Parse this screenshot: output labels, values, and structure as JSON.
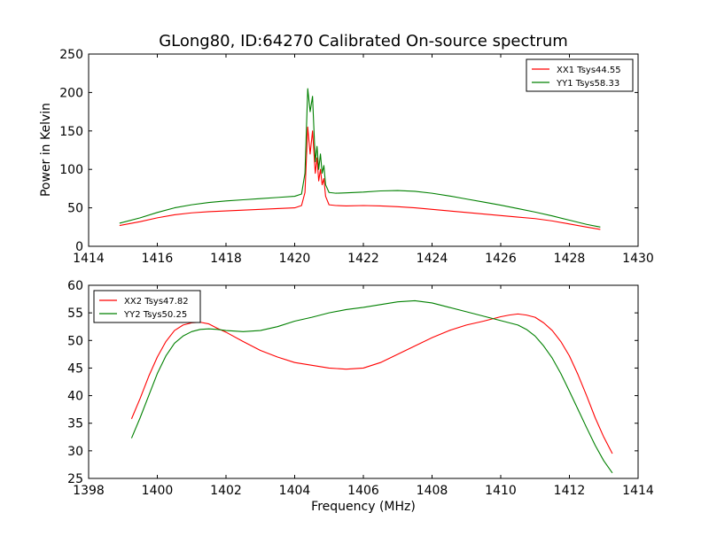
{
  "figure": {
    "title": "GLong80, ID:64270 Calibrated On-source spectrum",
    "ylabel_top": "Power in Kelvin",
    "xlabel_bottom": "Frequency (MHz)"
  },
  "colors": {
    "xx": "#ff0000",
    "yy": "#008000"
  },
  "chart_data": [
    {
      "type": "line",
      "title": "GLong80, ID:64270 Calibrated On-source spectrum",
      "xlabel": "",
      "ylabel": "Power in Kelvin",
      "xlim": [
        1414,
        1430
      ],
      "ylim": [
        0,
        250
      ],
      "xticks": [
        1414,
        1416,
        1418,
        1420,
        1422,
        1424,
        1426,
        1428,
        1430
      ],
      "yticks": [
        0,
        50,
        100,
        150,
        200,
        250
      ],
      "grid": false,
      "legend_position": "top-right",
      "series": [
        {
          "name": "XX1 Tsys44.55",
          "color": "#ff0000",
          "x": [
            1414.9,
            1415.5,
            1416.0,
            1416.5,
            1417.0,
            1417.5,
            1418.0,
            1418.5,
            1419.0,
            1419.5,
            1420.0,
            1420.2,
            1420.3,
            1420.38,
            1420.45,
            1420.52,
            1420.6,
            1420.65,
            1420.7,
            1420.75,
            1420.8,
            1420.85,
            1420.9,
            1421.0,
            1421.2,
            1421.5,
            1422.0,
            1422.5,
            1423.0,
            1423.5,
            1424.0,
            1424.5,
            1425.0,
            1425.5,
            1426.0,
            1426.5,
            1427.0,
            1427.5,
            1428.0,
            1428.5,
            1428.9
          ],
          "y": [
            27,
            32,
            37,
            41,
            43.5,
            45,
            46,
            47,
            48,
            49,
            50,
            53,
            70,
            155,
            120,
            150,
            95,
            115,
            85,
            100,
            80,
            88,
            65,
            54,
            53,
            52.5,
            53,
            52.5,
            51.5,
            50,
            48,
            46,
            44,
            42,
            40,
            38,
            36,
            33,
            29,
            25,
            22
          ]
        },
        {
          "name": "YY1 Tsys58.33",
          "color": "#008000",
          "x": [
            1414.9,
            1415.5,
            1416.0,
            1416.5,
            1417.0,
            1417.5,
            1418.0,
            1418.5,
            1419.0,
            1419.5,
            1420.0,
            1420.2,
            1420.3,
            1420.38,
            1420.45,
            1420.52,
            1420.6,
            1420.65,
            1420.7,
            1420.75,
            1420.8,
            1420.85,
            1420.9,
            1421.0,
            1421.2,
            1421.5,
            1422.0,
            1422.5,
            1423.0,
            1423.5,
            1424.0,
            1424.5,
            1425.0,
            1425.5,
            1426.0,
            1426.5,
            1427.0,
            1427.5,
            1428.0,
            1428.5,
            1428.9
          ],
          "y": [
            30,
            37,
            44,
            50,
            54,
            57,
            59,
            60.5,
            62,
            63.5,
            65,
            68,
            95,
            205,
            175,
            195,
            110,
            130,
            100,
            120,
            95,
            105,
            80,
            70,
            69,
            69.5,
            70.5,
            72,
            72.5,
            71.5,
            69,
            65.5,
            61.5,
            57.5,
            53.5,
            49,
            44.5,
            39.5,
            34,
            28.5,
            25
          ]
        }
      ]
    },
    {
      "type": "line",
      "title": "",
      "xlabel": "Frequency (MHz)",
      "ylabel": "",
      "xlim": [
        1398,
        1414
      ],
      "ylim": [
        25,
        60
      ],
      "xticks": [
        1398,
        1400,
        1402,
        1404,
        1406,
        1408,
        1410,
        1412,
        1414
      ],
      "yticks": [
        25,
        30,
        35,
        40,
        45,
        50,
        55,
        60
      ],
      "grid": false,
      "legend_position": "top-left",
      "series": [
        {
          "name": "XX2 Tsys47.82",
          "color": "#ff0000",
          "x": [
            1399.25,
            1399.5,
            1399.75,
            1400.0,
            1400.25,
            1400.5,
            1400.75,
            1401.0,
            1401.25,
            1401.5,
            1401.75,
            1402.0,
            1402.5,
            1403.0,
            1403.5,
            1404.0,
            1404.5,
            1405.0,
            1405.5,
            1406.0,
            1406.5,
            1407.0,
            1407.5,
            1408.0,
            1408.5,
            1409.0,
            1409.5,
            1410.0,
            1410.25,
            1410.5,
            1410.75,
            1411.0,
            1411.25,
            1411.5,
            1411.75,
            1412.0,
            1412.25,
            1412.5,
            1412.75,
            1413.0,
            1413.25
          ],
          "y": [
            35.8,
            39.5,
            43.5,
            47,
            49.8,
            51.8,
            52.8,
            53.2,
            53.3,
            53.0,
            52.2,
            51.5,
            49.8,
            48.2,
            47.0,
            46.0,
            45.5,
            45.0,
            44.8,
            45.0,
            46.0,
            47.5,
            49.0,
            50.5,
            51.8,
            52.8,
            53.5,
            54.3,
            54.6,
            54.8,
            54.6,
            54.2,
            53.2,
            51.8,
            49.8,
            47.2,
            43.8,
            40.0,
            36.0,
            32.5,
            29.5
          ]
        },
        {
          "name": "YY2 Tsys50.25",
          "color": "#008000",
          "x": [
            1399.25,
            1399.5,
            1399.75,
            1400.0,
            1400.25,
            1400.5,
            1400.75,
            1401.0,
            1401.25,
            1401.5,
            1401.75,
            1402.0,
            1402.5,
            1403.0,
            1403.5,
            1404.0,
            1404.5,
            1405.0,
            1405.5,
            1406.0,
            1406.5,
            1407.0,
            1407.5,
            1408.0,
            1408.5,
            1409.0,
            1409.5,
            1410.0,
            1410.25,
            1410.5,
            1410.75,
            1411.0,
            1411.25,
            1411.5,
            1411.75,
            1412.0,
            1412.25,
            1412.5,
            1412.75,
            1413.0,
            1413.25
          ],
          "y": [
            32.3,
            36.0,
            40.0,
            44.0,
            47.2,
            49.5,
            50.8,
            51.6,
            52.0,
            52.1,
            52.0,
            51.8,
            51.6,
            51.8,
            52.5,
            53.5,
            54.2,
            55.0,
            55.6,
            56.0,
            56.5,
            57.0,
            57.2,
            56.8,
            56.0,
            55.2,
            54.4,
            53.6,
            53.2,
            52.8,
            52.0,
            50.8,
            49.0,
            46.8,
            44.0,
            40.8,
            37.5,
            34.2,
            31.0,
            28.2,
            26.0
          ]
        }
      ]
    }
  ]
}
